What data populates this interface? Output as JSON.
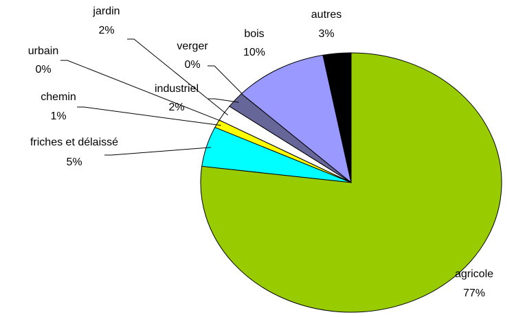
{
  "chart_data": {
    "type": "pie",
    "categories": [
      "agricole",
      "friches et délaissé",
      "chemin",
      "urbain",
      "jardin",
      "industriel",
      "verger",
      "bois",
      "autres"
    ],
    "values": [
      77,
      5,
      1,
      0,
      2,
      2,
      0,
      10,
      3
    ],
    "value_labels": [
      "77%",
      "5%",
      "1%",
      "0%",
      "2%",
      "2%",
      "0%",
      "10%",
      "3%"
    ],
    "colors": [
      "#99cc00",
      "#00ffff",
      "#ffff00",
      "#ff0000",
      "#ffffff",
      "#666699",
      "#000000",
      "#9999ff",
      "#000000"
    ]
  }
}
